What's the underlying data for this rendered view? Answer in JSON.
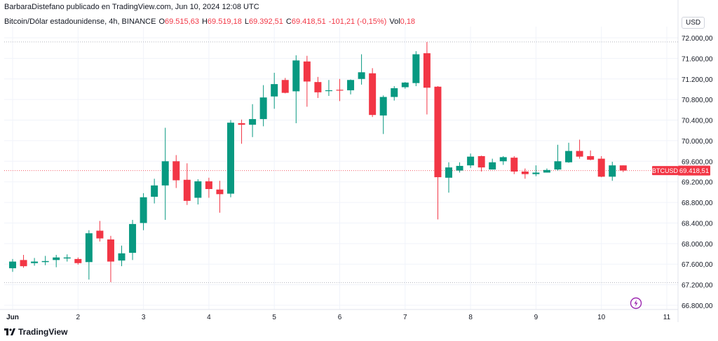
{
  "header": {
    "attribution": "BarbaraDistefano publicado en TradingView.com, Jun 10, 2024 12:08 UTC"
  },
  "legend": {
    "symbol_desc": "Bitcoin/Dólar estadounidense, 4h, BINANCE",
    "open_label": "O",
    "open_value": "69.515,63",
    "high_label": "H",
    "high_value": "69.519,18",
    "low_label": "L",
    "low_value": "69.392,51",
    "close_label": "C",
    "close_value": "69.418,51",
    "change_value": "-101,21 (-0,15%)",
    "vol_label": "Vol",
    "vol_value": "0,18"
  },
  "currency": "USD",
  "price_tag": {
    "symbol": "BTCUSD",
    "value": "69.418,51"
  },
  "footer": {
    "brand": "TradingView"
  },
  "colors": {
    "up": "#089981",
    "down": "#f23645",
    "grid": "#f0f3fa",
    "axis_text": "#131722"
  },
  "icons": {
    "logo": "tradingview-logo-icon",
    "event": "lightning-bolt-icon"
  },
  "chart_data": {
    "type": "candlestick",
    "xlabel": "",
    "ylabel": "",
    "ylim": [
      66800,
      72200
    ],
    "y_ticks": [
      "72.000,00",
      "71.600,00",
      "71.200,00",
      "70.800,00",
      "70.400,00",
      "70.000,00",
      "69.600,00",
      "69.200,00",
      "68.800,00",
      "68.400,00",
      "68.000,00",
      "67.600,00",
      "67.200,00",
      "66.800,00"
    ],
    "y_tick_values": [
      72000,
      71600,
      71200,
      70800,
      70400,
      70000,
      69600,
      69200,
      68800,
      68400,
      68000,
      67600,
      67200,
      66800
    ],
    "x_ticks": [
      "Jun",
      "2",
      "3",
      "4",
      "5",
      "6",
      "7",
      "8",
      "9",
      "10",
      "11"
    ],
    "x_tick_index": [
      0.5,
      6.5,
      12.5,
      18.5,
      24.5,
      30.5,
      36.5,
      42.5,
      48.5,
      54.5,
      60.5
    ],
    "dotted_levels": [
      71920,
      67240
    ],
    "last_price": 69418.51,
    "candles": [
      {
        "o": 67520,
        "h": 67700,
        "l": 67450,
        "c": 67650
      },
      {
        "o": 67680,
        "h": 67780,
        "l": 67530,
        "c": 67560
      },
      {
        "o": 67620,
        "h": 67720,
        "l": 67570,
        "c": 67650
      },
      {
        "o": 67640,
        "h": 67760,
        "l": 67580,
        "c": 67660
      },
      {
        "o": 67680,
        "h": 67780,
        "l": 67540,
        "c": 67730
      },
      {
        "o": 67710,
        "h": 67790,
        "l": 67650,
        "c": 67730
      },
      {
        "o": 67700,
        "h": 67730,
        "l": 67590,
        "c": 67620
      },
      {
        "o": 67640,
        "h": 68260,
        "l": 67300,
        "c": 68200
      },
      {
        "o": 68250,
        "h": 68440,
        "l": 68040,
        "c": 68100
      },
      {
        "o": 68080,
        "h": 68150,
        "l": 67250,
        "c": 67650
      },
      {
        "o": 67670,
        "h": 67960,
        "l": 67560,
        "c": 67810
      },
      {
        "o": 67820,
        "h": 68460,
        "l": 67680,
        "c": 68380
      },
      {
        "o": 68400,
        "h": 68980,
        "l": 68260,
        "c": 68900
      },
      {
        "o": 68910,
        "h": 69260,
        "l": 68780,
        "c": 69130
      },
      {
        "o": 69130,
        "h": 70250,
        "l": 68460,
        "c": 69600
      },
      {
        "o": 69600,
        "h": 69720,
        "l": 69080,
        "c": 69230
      },
      {
        "o": 69240,
        "h": 69560,
        "l": 68750,
        "c": 68830
      },
      {
        "o": 68890,
        "h": 69250,
        "l": 68760,
        "c": 69210
      },
      {
        "o": 69210,
        "h": 69280,
        "l": 68890,
        "c": 69060
      },
      {
        "o": 69050,
        "h": 69220,
        "l": 68600,
        "c": 68960
      },
      {
        "o": 68970,
        "h": 70400,
        "l": 68900,
        "c": 70350
      },
      {
        "o": 70340,
        "h": 70410,
        "l": 69940,
        "c": 70310
      },
      {
        "o": 70310,
        "h": 70710,
        "l": 70070,
        "c": 70420
      },
      {
        "o": 70420,
        "h": 71080,
        "l": 70280,
        "c": 70840
      },
      {
        "o": 70860,
        "h": 71320,
        "l": 70620,
        "c": 71100
      },
      {
        "o": 71180,
        "h": 71220,
        "l": 70920,
        "c": 70930
      },
      {
        "o": 70960,
        "h": 71660,
        "l": 70340,
        "c": 71560
      },
      {
        "o": 71540,
        "h": 71650,
        "l": 70660,
        "c": 71150
      },
      {
        "o": 71140,
        "h": 71240,
        "l": 70830,
        "c": 70940
      },
      {
        "o": 70980,
        "h": 71180,
        "l": 70870,
        "c": 70980
      },
      {
        "o": 70990,
        "h": 71200,
        "l": 70770,
        "c": 70980
      },
      {
        "o": 70980,
        "h": 71190,
        "l": 70900,
        "c": 71180
      },
      {
        "o": 71200,
        "h": 71680,
        "l": 71090,
        "c": 71330
      },
      {
        "o": 71310,
        "h": 71410,
        "l": 70460,
        "c": 70500
      },
      {
        "o": 70490,
        "h": 70880,
        "l": 70130,
        "c": 70850
      },
      {
        "o": 70850,
        "h": 71060,
        "l": 70780,
        "c": 71020
      },
      {
        "o": 71040,
        "h": 71140,
        "l": 71010,
        "c": 71130
      },
      {
        "o": 71120,
        "h": 71740,
        "l": 71060,
        "c": 71680
      },
      {
        "o": 71700,
        "h": 71920,
        "l": 70510,
        "c": 71030
      },
      {
        "o": 71050,
        "h": 71060,
        "l": 68470,
        "c": 69290
      },
      {
        "o": 69280,
        "h": 69580,
        "l": 68990,
        "c": 69480
      },
      {
        "o": 69420,
        "h": 69580,
        "l": 69380,
        "c": 69510
      },
      {
        "o": 69520,
        "h": 69750,
        "l": 69470,
        "c": 69690
      },
      {
        "o": 69700,
        "h": 69710,
        "l": 69400,
        "c": 69480
      },
      {
        "o": 69440,
        "h": 69650,
        "l": 69440,
        "c": 69580
      },
      {
        "o": 69600,
        "h": 69700,
        "l": 69530,
        "c": 69680
      },
      {
        "o": 69670,
        "h": 69700,
        "l": 69350,
        "c": 69400
      },
      {
        "o": 69400,
        "h": 69460,
        "l": 69260,
        "c": 69350
      },
      {
        "o": 69350,
        "h": 69520,
        "l": 69310,
        "c": 69380
      },
      {
        "o": 69380,
        "h": 69460,
        "l": 69380,
        "c": 69430
      },
      {
        "o": 69440,
        "h": 69920,
        "l": 69420,
        "c": 69600
      },
      {
        "o": 69580,
        "h": 69960,
        "l": 69570,
        "c": 69800
      },
      {
        "o": 69800,
        "h": 70020,
        "l": 69650,
        "c": 69690
      },
      {
        "o": 69700,
        "h": 69810,
        "l": 69620,
        "c": 69630
      },
      {
        "o": 69650,
        "h": 69700,
        "l": 69290,
        "c": 69300
      },
      {
        "o": 69300,
        "h": 69590,
        "l": 69220,
        "c": 69520
      },
      {
        "o": 69520,
        "h": 69520,
        "l": 69390,
        "c": 69420
      }
    ]
  }
}
